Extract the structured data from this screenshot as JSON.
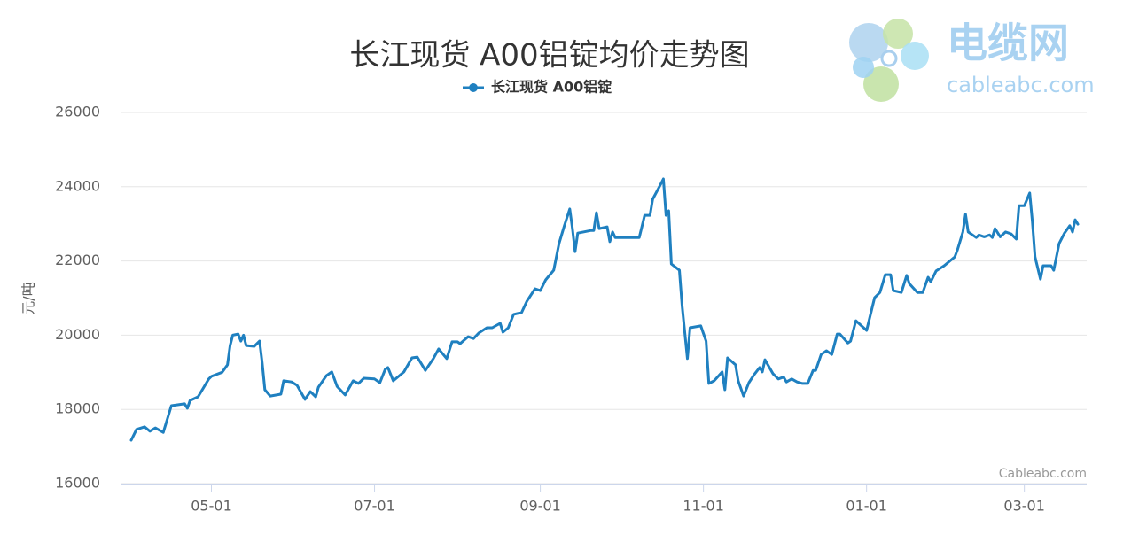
{
  "logo": {
    "name": "电缆网",
    "site": "cableabc.com"
  },
  "chart_data": {
    "type": "line",
    "title": "长江现货 A00铝锭均价走势图",
    "ylabel": "元/吨",
    "credits": "Cableabc.com",
    "x": [
      "04-01",
      "04-03",
      "04-06",
      "04-08",
      "04-10",
      "04-13",
      "04-16",
      "04-21",
      "04-22",
      "04-23",
      "04-26",
      "04-28",
      "04-30",
      "05-01",
      "05-05",
      "05-07",
      "05-08",
      "05-09",
      "05-11",
      "05-12",
      "05-13",
      "05-14",
      "05-17",
      "05-19",
      "05-20",
      "05-21",
      "05-23",
      "05-27",
      "05-28",
      "05-31",
      "06-02",
      "06-05",
      "06-07",
      "06-09",
      "06-10",
      "06-13",
      "06-15",
      "06-17",
      "06-20",
      "06-23",
      "06-25",
      "06-27",
      "07-01",
      "07-03",
      "07-05",
      "07-06",
      "07-08",
      "07-12",
      "07-15",
      "07-17",
      "07-20",
      "07-23",
      "07-25",
      "07-28",
      "07-30",
      "08-01",
      "08-02",
      "08-05",
      "08-07",
      "08-09",
      "08-12",
      "08-14",
      "08-17",
      "08-18",
      "08-20",
      "08-22",
      "08-25",
      "08-27",
      "08-30",
      "09-01",
      "09-03",
      "09-06",
      "09-08",
      "09-10",
      "09-12",
      "09-13",
      "09-14",
      "09-15",
      "09-20",
      "09-21",
      "09-22",
      "09-23",
      "09-26",
      "09-27",
      "09-28",
      "09-29",
      "10-08",
      "10-10",
      "10-12",
      "10-13",
      "10-16",
      "10-17",
      "10-18",
      "10-19",
      "10-20",
      "10-23",
      "10-24",
      "10-25",
      "10-26",
      "10-27",
      "10-31",
      "11-02",
      "11-03",
      "11-05",
      "11-08",
      "11-09",
      "11-10",
      "11-13",
      "11-14",
      "11-16",
      "11-18",
      "11-20",
      "11-22",
      "11-23",
      "11-24",
      "11-27",
      "11-29",
      "12-01",
      "12-02",
      "12-04",
      "12-06",
      "12-08",
      "12-10",
      "12-12",
      "12-13",
      "12-15",
      "12-17",
      "12-19",
      "12-21",
      "12-22",
      "12-25",
      "12-26",
      "12-28",
      "01-01",
      "01-04",
      "01-06",
      "01-08",
      "01-10",
      "01-11",
      "01-14",
      "01-16",
      "01-17",
      "01-20",
      "01-22",
      "01-24",
      "01-25",
      "01-27",
      "01-30",
      "02-03",
      "02-04",
      "02-06",
      "02-07",
      "02-08",
      "02-11",
      "02-12",
      "02-14",
      "02-16",
      "02-17",
      "02-18",
      "02-20",
      "02-22",
      "02-24",
      "02-26",
      "02-27",
      "03-01",
      "03-02",
      "03-03",
      "03-04",
      "03-05",
      "03-07",
      "03-08",
      "03-11",
      "03-12",
      "03-14",
      "03-16",
      "03-18",
      "03-19",
      "03-20",
      "03-21"
    ],
    "series": [
      {
        "name": "长江现货 A00铝锭",
        "color": "#1f80c0",
        "values": [
          17170,
          17460,
          17530,
          17410,
          17500,
          17380,
          18100,
          18150,
          18030,
          18240,
          18340,
          18580,
          18820,
          18890,
          19000,
          19200,
          19720,
          20000,
          20030,
          19840,
          20000,
          19720,
          19700,
          19840,
          19250,
          18530,
          18360,
          18410,
          18770,
          18740,
          18650,
          18270,
          18480,
          18340,
          18600,
          18910,
          19010,
          18620,
          18390,
          18770,
          18700,
          18840,
          18820,
          18720,
          19080,
          19130,
          18770,
          19010,
          19390,
          19410,
          19050,
          19370,
          19630,
          19370,
          19820,
          19820,
          19770,
          19960,
          19910,
          20060,
          20200,
          20200,
          20320,
          20080,
          20200,
          20560,
          20610,
          20920,
          21250,
          21200,
          21490,
          21750,
          22470,
          22950,
          23400,
          22870,
          22250,
          22750,
          22820,
          22820,
          23300,
          22870,
          22920,
          22520,
          22780,
          22630,
          22630,
          23230,
          23230,
          23660,
          24070,
          24210,
          23230,
          23350,
          21920,
          21750,
          20800,
          20080,
          19370,
          20200,
          20250,
          19840,
          18700,
          18770,
          19010,
          18530,
          19390,
          19200,
          18770,
          18360,
          18720,
          18940,
          19130,
          19010,
          19340,
          18960,
          18820,
          18870,
          18740,
          18820,
          18740,
          18700,
          18700,
          19050,
          19050,
          19480,
          19580,
          19480,
          20030,
          20030,
          19790,
          19840,
          20390,
          20130,
          21010,
          21150,
          21630,
          21630,
          21200,
          21150,
          21610,
          21390,
          21150,
          21150,
          21560,
          21440,
          21730,
          21870,
          22110,
          22300,
          22780,
          23260,
          22780,
          22630,
          22700,
          22650,
          22700,
          22630,
          22870,
          22650,
          22780,
          22730,
          22590,
          23490,
          23490,
          23660,
          23830,
          23060,
          22110,
          21510,
          21870,
          21870,
          21750,
          22470,
          22750,
          22950,
          22780,
          23110,
          22990
        ]
      }
    ],
    "xlim": [
      "04-01",
      "03-21"
    ],
    "xticks": [
      "05-01",
      "07-01",
      "09-01",
      "11-01",
      "01-01",
      "03-01"
    ],
    "ylim": [
      16000,
      26000
    ],
    "yticks": [
      16000,
      18000,
      20000,
      22000,
      24000,
      26000
    ],
    "grid": true
  }
}
